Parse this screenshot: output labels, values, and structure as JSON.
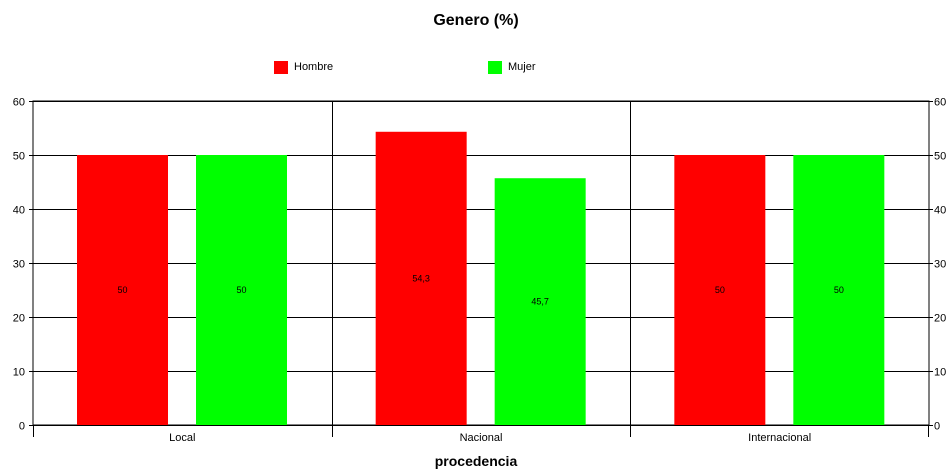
{
  "chart_data": {
    "type": "bar",
    "title": "Genero (%)",
    "xlabel": "procedencia",
    "ylabel": "",
    "categories": [
      "Local",
      "Nacional",
      "Internacional"
    ],
    "series": [
      {
        "name": "Hombre",
        "color": "#ff0000",
        "values": [
          50,
          54.3,
          50
        ],
        "labels": [
          "50",
          "54,3",
          "50"
        ]
      },
      {
        "name": "Mujer",
        "color": "#00ff00",
        "values": [
          50,
          45.7,
          50
        ],
        "labels": [
          "50",
          "45,7",
          "50"
        ]
      }
    ],
    "ylim": [
      0,
      60
    ],
    "yticks": [
      0,
      10,
      20,
      30,
      40,
      50,
      60
    ],
    "grid": true,
    "legend": "top-center"
  }
}
